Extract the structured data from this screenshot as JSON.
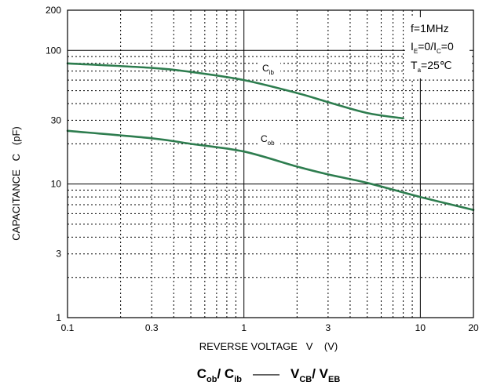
{
  "chart_data": {
    "type": "line",
    "title": "",
    "xlabel": "REVERSE VOLTAGE   V    (V)",
    "ylabel": "CAPACITANCE   C   (pF)",
    "xscale": "log",
    "yscale": "log",
    "xlim": [
      0.1,
      20
    ],
    "ylim": [
      1,
      200
    ],
    "grid": true,
    "x_ticks": [
      "0.1",
      "0.3",
      "1",
      "3",
      "10",
      "20"
    ],
    "y_ticks": [
      "1",
      "3",
      "10",
      "30",
      "100",
      "200"
    ],
    "series": [
      {
        "name": "Cib",
        "label_main": "C",
        "label_sub": "ib",
        "color": "#2e7d4f",
        "x": [
          0.1,
          0.3,
          0.5,
          1,
          2,
          3,
          5,
          8
        ],
        "y": [
          80,
          74,
          69,
          60,
          48,
          41,
          34,
          31
        ]
      },
      {
        "name": "Cob",
        "label_main": "C",
        "label_sub": "ob",
        "color": "#2e7d4f",
        "x": [
          0.1,
          0.3,
          0.5,
          1,
          2,
          3,
          5,
          10,
          20
        ],
        "y": [
          25,
          22,
          20,
          17.5,
          13.5,
          11.8,
          10.2,
          8,
          6.4
        ]
      }
    ],
    "annotation": {
      "line1": "f=1MHz",
      "line2": {
        "a": "I",
        "a_sub": "E",
        "b": "=0/I",
        "b_sub": "C",
        "c": "=0"
      },
      "line3": {
        "a": "T",
        "a_sub": "a",
        "b": "=25℃"
      }
    },
    "caption": {
      "left_main1": "C",
      "left_sub1": "ob",
      "left_main2": "/ C",
      "left_sub2": "ib",
      "dash": "——",
      "right_main1": "V",
      "right_sub1": "CB",
      "right_main2": "/ V",
      "right_sub2": "EB"
    }
  }
}
